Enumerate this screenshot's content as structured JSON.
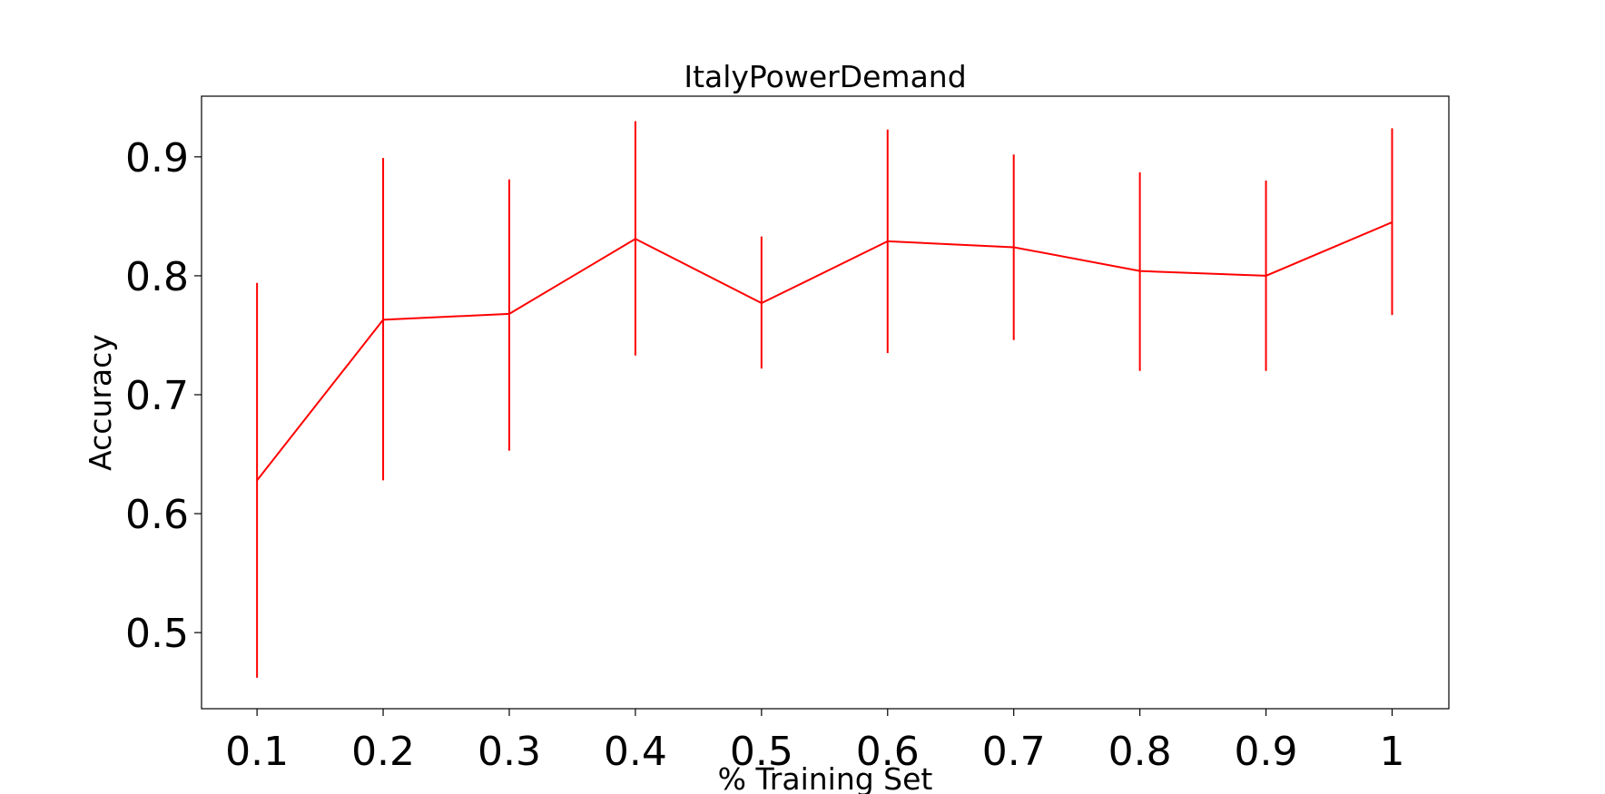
{
  "chart_data": {
    "type": "line",
    "title": "ItalyPowerDemand",
    "xlabel": "% Training Set",
    "ylabel": "Accuracy",
    "x": [
      0.1,
      0.2,
      0.3,
      0.4,
      0.5,
      0.6,
      0.7,
      0.8,
      0.9,
      1.0
    ],
    "x_tick_labels": [
      "0.1",
      "0.2",
      "0.3",
      "0.4",
      "0.5",
      "0.6",
      "0.7",
      "0.8",
      "0.9",
      "1"
    ],
    "y_ticks": [
      0.5,
      0.6,
      0.7,
      0.8,
      0.9
    ],
    "y_tick_labels": [
      "0.5",
      "0.6",
      "0.7",
      "0.8",
      "0.9"
    ],
    "xlim": [
      0.056,
      1.045
    ],
    "ylim": [
      0.436,
      0.951
    ],
    "grid": false,
    "series": [
      {
        "color": "#ff0000",
        "values": [
          0.628,
          0.763,
          0.768,
          0.831,
          0.777,
          0.829,
          0.824,
          0.804,
          0.8,
          0.845
        ],
        "error_low": [
          0.462,
          0.628,
          0.653,
          0.733,
          0.722,
          0.735,
          0.746,
          0.72,
          0.72,
          0.767
        ],
        "error_high": [
          0.794,
          0.899,
          0.881,
          0.93,
          0.833,
          0.923,
          0.902,
          0.887,
          0.88,
          0.924
        ]
      }
    ]
  }
}
